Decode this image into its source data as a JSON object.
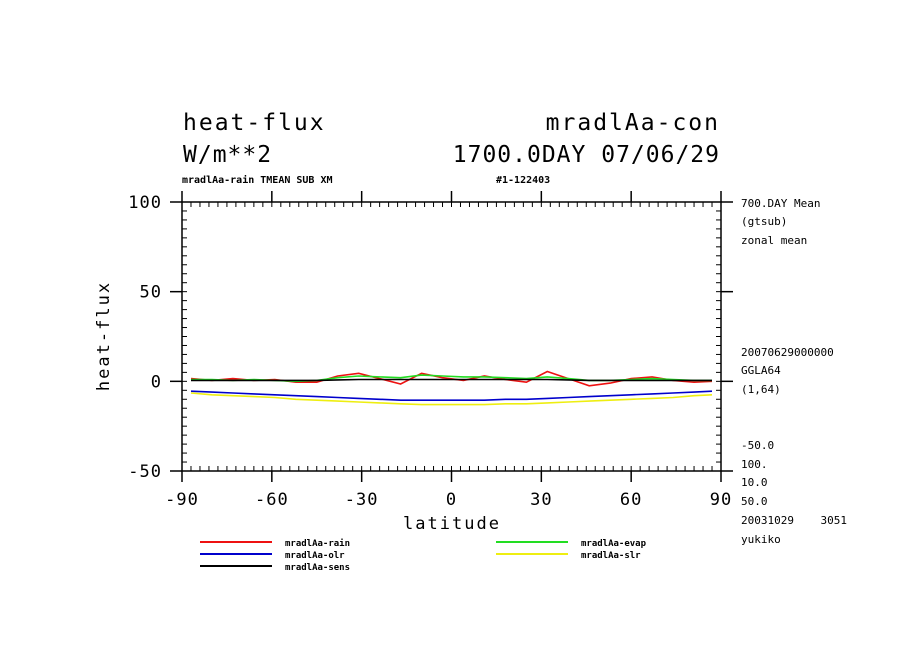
{
  "header": {
    "left_line1": "heat-flux",
    "left_line2": "W/m**2",
    "right_line1": "mradlAa-con",
    "right_line2": "1700.0DAY 07/06/29",
    "sub_left": "mradlAa-rain TMEAN SUB XM",
    "sub_right": "#1-122403"
  },
  "side_notes": {
    "top": [
      "700.DAY Mean",
      "(gtsub)",
      "zonal mean"
    ],
    "middle": [
      "20070629000000",
      "GGLA64",
      "(1,64)"
    ],
    "bottom": [
      "-50.0",
      "100.",
      "10.0",
      "50.0",
      "20031029    3051",
      "yukiko"
    ]
  },
  "colors": {
    "rain": "#ee1111",
    "evap": "#22dd22",
    "olr": "#0000cc",
    "slr": "#eeee11",
    "sens": "#000000"
  },
  "chart_data": {
    "type": "line",
    "xlabel": "latitude",
    "ylabel": "heat-flux",
    "xlim": [
      -90,
      90
    ],
    "ylim": [
      -50,
      100
    ],
    "xticks": [
      "-90",
      "-60",
      "-30",
      "0",
      "30",
      "60",
      "90"
    ],
    "yticks": [
      "-50",
      "0",
      "50",
      "100"
    ],
    "x": [
      -87,
      -80,
      -73,
      -66,
      -59,
      -52,
      -45,
      -38,
      -31,
      -24,
      -17,
      -10,
      -3,
      4,
      11,
      18,
      25,
      32,
      39,
      46,
      53,
      60,
      67,
      74,
      81,
      87
    ],
    "series": [
      {
        "name": "mradlAa-rain",
        "key": "rain",
        "values": [
          1.5,
          0.5,
          1.5,
          0.5,
          1.0,
          -0.5,
          -0.5,
          3.0,
          4.5,
          1.5,
          -1.5,
          4.5,
          2.0,
          0.5,
          3.0,
          1.0,
          -0.5,
          5.5,
          1.5,
          -2.5,
          -1.0,
          1.5,
          2.5,
          0.5,
          -0.5,
          0.0
        ]
      },
      {
        "name": "mradlAa-evap",
        "key": "evap",
        "values": [
          1.0,
          1.0,
          0.5,
          1.0,
          0.5,
          0.0,
          0.5,
          2.0,
          3.0,
          2.5,
          2.0,
          3.5,
          3.0,
          2.5,
          2.5,
          2.0,
          1.5,
          2.5,
          1.5,
          0.5,
          0.5,
          1.0,
          1.5,
          1.0,
          0.5,
          0.5
        ]
      },
      {
        "name": "mradlAa-olr",
        "key": "olr",
        "values": [
          -5.5,
          -6.0,
          -6.5,
          -7.0,
          -7.5,
          -8.0,
          -8.5,
          -9.0,
          -9.5,
          -10.0,
          -10.5,
          -10.5,
          -10.5,
          -10.5,
          -10.5,
          -10.0,
          -10.0,
          -9.5,
          -9.0,
          -8.5,
          -8.0,
          -7.5,
          -7.0,
          -6.5,
          -6.0,
          -5.5
        ]
      },
      {
        "name": "mradlAa-slr",
        "key": "slr",
        "values": [
          -6.5,
          -7.5,
          -8.0,
          -8.5,
          -9.0,
          -10.0,
          -10.5,
          -11.0,
          -11.5,
          -12.0,
          -12.5,
          -13.0,
          -13.0,
          -13.0,
          -13.0,
          -12.5,
          -12.5,
          -12.0,
          -11.5,
          -11.0,
          -10.5,
          -10.0,
          -9.5,
          -9.0,
          -8.0,
          -7.5
        ]
      },
      {
        "name": "mradlAa-sens",
        "key": "sens",
        "values": [
          0.5,
          0.5,
          0.5,
          0.5,
          0.5,
          0.5,
          0.5,
          0.8,
          1.0,
          1.0,
          1.0,
          1.0,
          1.0,
          1.0,
          1.0,
          1.0,
          1.0,
          1.0,
          0.8,
          0.5,
          0.5,
          0.5,
          0.5,
          0.5,
          0.5,
          0.5
        ]
      }
    ],
    "legend": [
      "mradlAa-rain",
      "mradlAa-evap",
      "mradlAa-olr",
      "mradlAa-slr",
      "mradlAa-sens"
    ],
    "grid": false,
    "legend_position": "bottom"
  }
}
